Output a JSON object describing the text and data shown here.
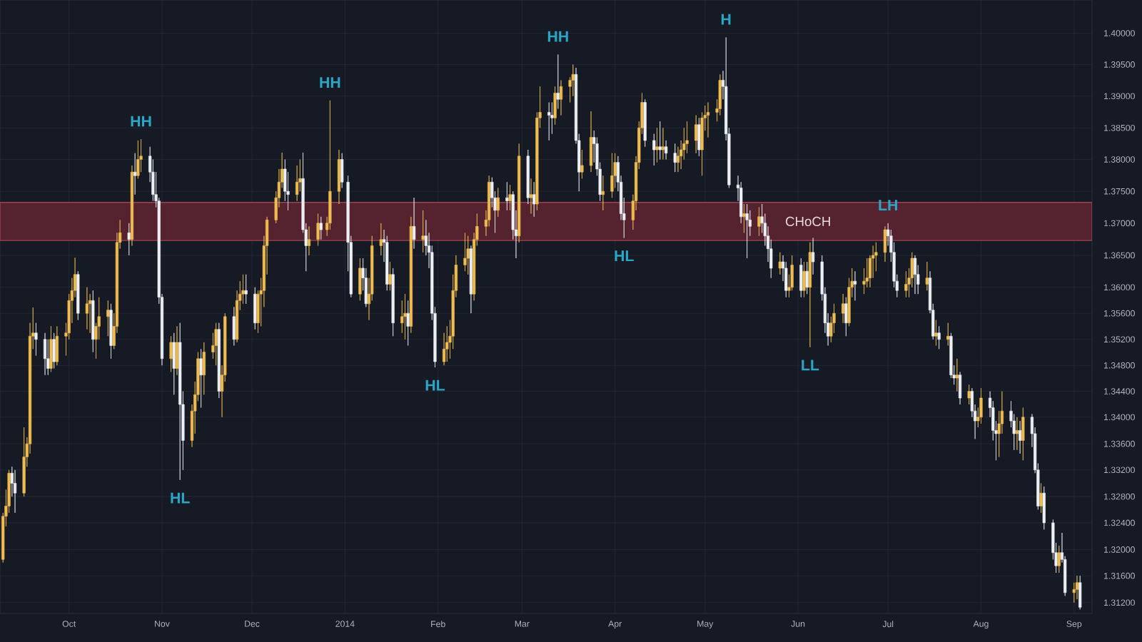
{
  "chart_data": {
    "type": "candlestick",
    "x": [
      "2013-09-09",
      "2013-09-10",
      "2013-09-11",
      "2013-09-12",
      "2013-09-13",
      "2013-09-16",
      "2013-09-17",
      "2013-09-18",
      "2013-09-19",
      "2013-09-20",
      "2013-09-23",
      "2013-09-24",
      "2013-09-25",
      "2013-09-26",
      "2013-09-27",
      "2013-09-30",
      "2013-10-01",
      "2013-10-02",
      "2013-10-03",
      "2013-10-04",
      "2013-10-07",
      "2013-10-08",
      "2013-10-09",
      "2013-10-10",
      "2013-10-11",
      "2013-10-14",
      "2013-10-15",
      "2013-10-16",
      "2013-10-17",
      "2013-10-18",
      "2013-10-21",
      "2013-10-22",
      "2013-10-23",
      "2013-10-24",
      "2013-10-25",
      "2013-10-28",
      "2013-10-29",
      "2013-10-30",
      "2013-10-31",
      "2013-11-01",
      "2013-11-04",
      "2013-11-05",
      "2013-11-06",
      "2013-11-07",
      "2013-11-08",
      "2013-11-11",
      "2013-11-12",
      "2013-11-13",
      "2013-11-14",
      "2013-11-15",
      "2013-11-18",
      "2013-11-19",
      "2013-11-20",
      "2013-11-21",
      "2013-11-22",
      "2013-11-25",
      "2013-11-26",
      "2013-11-27",
      "2013-11-28",
      "2013-11-29",
      "2013-12-02",
      "2013-12-03",
      "2013-12-04",
      "2013-12-05",
      "2013-12-06",
      "2013-12-09",
      "2013-12-10",
      "2013-12-11",
      "2013-12-12",
      "2013-12-13",
      "2013-12-16",
      "2013-12-17",
      "2013-12-18",
      "2013-12-19",
      "2013-12-20",
      "2013-12-23",
      "2013-12-24",
      "2013-12-26",
      "2013-12-27",
      "2013-12-30",
      "2013-12-31",
      "2014-01-02",
      "2014-01-03",
      "2014-01-06",
      "2014-01-07",
      "2014-01-08",
      "2014-01-09",
      "2014-01-10",
      "2014-01-13",
      "2014-01-14",
      "2014-01-15",
      "2014-01-16",
      "2014-01-17",
      "2014-01-20",
      "2014-01-21",
      "2014-01-22",
      "2014-01-23",
      "2014-01-24",
      "2014-01-27",
      "2014-01-28",
      "2014-01-29",
      "2014-01-30",
      "2014-01-31",
      "2014-02-03",
      "2014-02-04",
      "2014-02-05",
      "2014-02-06",
      "2014-02-07",
      "2014-02-10",
      "2014-02-11",
      "2014-02-12",
      "2014-02-13",
      "2014-02-14",
      "2014-02-17",
      "2014-02-18",
      "2014-02-19",
      "2014-02-20",
      "2014-02-21",
      "2014-02-24",
      "2014-02-25",
      "2014-02-26",
      "2014-02-27",
      "2014-02-28",
      "2014-03-03",
      "2014-03-04",
      "2014-03-05",
      "2014-03-06",
      "2014-03-07",
      "2014-03-10",
      "2014-03-11",
      "2014-03-12",
      "2014-03-13",
      "2014-03-14",
      "2014-03-17",
      "2014-03-18",
      "2014-03-19",
      "2014-03-20",
      "2014-03-21",
      "2014-03-24",
      "2014-03-25",
      "2014-03-26",
      "2014-03-27",
      "2014-03-28",
      "2014-03-31",
      "2014-04-01",
      "2014-04-02",
      "2014-04-03",
      "2014-04-04",
      "2014-04-07",
      "2014-04-08",
      "2014-04-09",
      "2014-04-10",
      "2014-04-11",
      "2014-04-14",
      "2014-04-15",
      "2014-04-16",
      "2014-04-17",
      "2014-04-18",
      "2014-04-21",
      "2014-04-22",
      "2014-04-23",
      "2014-04-24",
      "2014-04-25",
      "2014-04-28",
      "2014-04-29",
      "2014-04-30",
      "2014-05-01",
      "2014-05-02",
      "2014-05-05",
      "2014-05-06",
      "2014-05-07",
      "2014-05-08",
      "2014-05-09",
      "2014-05-12",
      "2014-05-13",
      "2014-05-14",
      "2014-05-15",
      "2014-05-16",
      "2014-05-19",
      "2014-05-20",
      "2014-05-21",
      "2014-05-22",
      "2014-05-23",
      "2014-05-26",
      "2014-05-27",
      "2014-05-28",
      "2014-05-29",
      "2014-05-30",
      "2014-06-02",
      "2014-06-03",
      "2014-06-04",
      "2014-06-05",
      "2014-06-06",
      "2014-06-09",
      "2014-06-10",
      "2014-06-11",
      "2014-06-12",
      "2014-06-13",
      "2014-06-16",
      "2014-06-17",
      "2014-06-18",
      "2014-06-19",
      "2014-06-20",
      "2014-06-23",
      "2014-06-24",
      "2014-06-25",
      "2014-06-26",
      "2014-06-27",
      "2014-06-30",
      "2014-07-01",
      "2014-07-02",
      "2014-07-03",
      "2014-07-04",
      "2014-07-07",
      "2014-07-08",
      "2014-07-09",
      "2014-07-10",
      "2014-07-11",
      "2014-07-14",
      "2014-07-15",
      "2014-07-16",
      "2014-07-17",
      "2014-07-18",
      "2014-07-21",
      "2014-07-22",
      "2014-07-23",
      "2014-07-24",
      "2014-07-25",
      "2014-07-28",
      "2014-07-29",
      "2014-07-30",
      "2014-07-31",
      "2014-08-01",
      "2014-08-04",
      "2014-08-05",
      "2014-08-06",
      "2014-08-07",
      "2014-08-08",
      "2014-08-11",
      "2014-08-12",
      "2014-08-13",
      "2014-08-14",
      "2014-08-15",
      "2014-08-18",
      "2014-08-19",
      "2014-08-20",
      "2014-08-21",
      "2014-08-22",
      "2014-08-25",
      "2014-08-26",
      "2014-08-27",
      "2014-08-28",
      "2014-08-29",
      "2014-09-01",
      "2014-09-02",
      "2014-09-03"
    ],
    "ohlc": [
      [
        1.3185,
        1.3255,
        1.318,
        1.325
      ],
      [
        1.325,
        1.329,
        1.3235,
        1.3265
      ],
      [
        1.3265,
        1.332,
        1.3255,
        1.3315
      ],
      [
        1.3315,
        1.3325,
        1.328,
        1.33
      ],
      [
        1.33,
        1.332,
        1.3255,
        1.3285
      ],
      [
        1.3285,
        1.3385,
        1.328,
        1.334
      ],
      [
        1.334,
        1.337,
        1.3325,
        1.336
      ],
      [
        1.336,
        1.3545,
        1.3345,
        1.3525
      ],
      [
        1.3525,
        1.3569,
        1.3505,
        1.353
      ],
      [
        1.353,
        1.3545,
        1.3495,
        1.352
      ],
      [
        1.352,
        1.353,
        1.3465,
        1.349
      ],
      [
        1.349,
        1.352,
        1.3465,
        1.3475
      ],
      [
        1.3475,
        1.354,
        1.347,
        1.352
      ],
      [
        1.352,
        1.353,
        1.3475,
        1.3485
      ],
      [
        1.3485,
        1.354,
        1.348,
        1.3525
      ],
      [
        1.3525,
        1.3545,
        1.3495,
        1.353
      ],
      [
        1.353,
        1.359,
        1.352,
        1.358
      ],
      [
        1.358,
        1.3615,
        1.3545,
        1.3595
      ],
      [
        1.3595,
        1.3646,
        1.3585,
        1.362
      ],
      [
        1.362,
        1.3625,
        1.355,
        1.356
      ],
      [
        1.356,
        1.36,
        1.3535,
        1.3575
      ],
      [
        1.3575,
        1.359,
        1.353,
        1.358
      ],
      [
        1.358,
        1.3595,
        1.35,
        1.352
      ],
      [
        1.352,
        1.3545,
        1.349,
        1.354
      ],
      [
        1.354,
        1.3585,
        1.352,
        1.3555
      ],
      [
        1.3555,
        1.358,
        1.3525,
        1.3565
      ],
      [
        1.3565,
        1.3575,
        1.349,
        1.351
      ],
      [
        1.351,
        1.356,
        1.3505,
        1.354
      ],
      [
        1.354,
        1.3685,
        1.353,
        1.367
      ],
      [
        1.367,
        1.3705,
        1.366,
        1.3685
      ],
      [
        1.3685,
        1.37,
        1.365,
        1.3675
      ],
      [
        1.3675,
        1.379,
        1.3665,
        1.378
      ],
      [
        1.378,
        1.381,
        1.3745,
        1.3775
      ],
      [
        1.3775,
        1.383,
        1.377,
        1.38
      ],
      [
        1.38,
        1.3832,
        1.378,
        1.3805
      ],
      [
        1.3805,
        1.382,
        1.3765,
        1.378
      ],
      [
        1.378,
        1.38,
        1.3735,
        1.3745
      ],
      [
        1.3745,
        1.378,
        1.3725,
        1.3735
      ],
      [
        1.3735,
        1.374,
        1.3575,
        1.3585
      ],
      [
        1.3585,
        1.359,
        1.348,
        1.349
      ],
      [
        1.349,
        1.3525,
        1.347,
        1.3515
      ],
      [
        1.3515,
        1.353,
        1.3435,
        1.3475
      ],
      [
        1.3475,
        1.354,
        1.3465,
        1.3515
      ],
      [
        1.3515,
        1.3545,
        1.3305,
        1.342
      ],
      [
        1.342,
        1.344,
        1.332,
        1.3365
      ],
      [
        1.3365,
        1.342,
        1.3355,
        1.341
      ],
      [
        1.341,
        1.3455,
        1.3375,
        1.3435
      ],
      [
        1.3435,
        1.35,
        1.3425,
        1.349
      ],
      [
        1.349,
        1.3505,
        1.3415,
        1.3465
      ],
      [
        1.3465,
        1.3515,
        1.3435,
        1.35
      ],
      [
        1.35,
        1.353,
        1.349,
        1.351
      ],
      [
        1.351,
        1.3545,
        1.348,
        1.3535
      ],
      [
        1.3535,
        1.3545,
        1.343,
        1.344
      ],
      [
        1.344,
        1.348,
        1.34,
        1.3465
      ],
      [
        1.3465,
        1.356,
        1.3455,
        1.3555
      ],
      [
        1.3555,
        1.357,
        1.351,
        1.352
      ],
      [
        1.352,
        1.3595,
        1.3515,
        1.358
      ],
      [
        1.358,
        1.361,
        1.3565,
        1.359
      ],
      [
        1.359,
        1.362,
        1.3575,
        1.3595
      ],
      [
        1.3595,
        1.362,
        1.3575,
        1.359
      ],
      [
        1.359,
        1.36,
        1.3535,
        1.3545
      ],
      [
        1.3545,
        1.3595,
        1.353,
        1.359
      ],
      [
        1.359,
        1.3615,
        1.354,
        1.3595
      ],
      [
        1.3595,
        1.368,
        1.357,
        1.3665
      ],
      [
        1.3665,
        1.371,
        1.362,
        1.3705
      ],
      [
        1.3705,
        1.375,
        1.37,
        1.374
      ],
      [
        1.374,
        1.3785,
        1.3725,
        1.3765
      ],
      [
        1.3765,
        1.3811,
        1.3755,
        1.3785
      ],
      [
        1.3785,
        1.38,
        1.3735,
        1.375
      ],
      [
        1.375,
        1.378,
        1.372,
        1.3745
      ],
      [
        1.3745,
        1.379,
        1.3735,
        1.3765
      ],
      [
        1.3765,
        1.38,
        1.375,
        1.377
      ],
      [
        1.377,
        1.3811,
        1.3685,
        1.369
      ],
      [
        1.369,
        1.37,
        1.3625,
        1.3665
      ],
      [
        1.3665,
        1.3695,
        1.365,
        1.3675
      ],
      [
        1.3675,
        1.3715,
        1.3665,
        1.37
      ],
      [
        1.37,
        1.371,
        1.3675,
        1.369
      ],
      [
        1.369,
        1.371,
        1.368,
        1.37
      ],
      [
        1.37,
        1.3893,
        1.369,
        1.375
      ],
      [
        1.375,
        1.3815,
        1.373,
        1.38
      ],
      [
        1.38,
        1.381,
        1.3755,
        1.3765
      ],
      [
        1.3765,
        1.3775,
        1.3625,
        1.367
      ],
      [
        1.367,
        1.368,
        1.3585,
        1.359
      ],
      [
        1.359,
        1.3645,
        1.358,
        1.363
      ],
      [
        1.363,
        1.3645,
        1.3595,
        1.3615
      ],
      [
        1.3615,
        1.363,
        1.357,
        1.3575
      ],
      [
        1.3575,
        1.3615,
        1.355,
        1.359
      ],
      [
        1.359,
        1.368,
        1.358,
        1.3665
      ],
      [
        1.3665,
        1.37,
        1.365,
        1.3675
      ],
      [
        1.3675,
        1.369,
        1.364,
        1.367
      ],
      [
        1.367,
        1.368,
        1.3595,
        1.3605
      ],
      [
        1.3605,
        1.364,
        1.3595,
        1.362
      ],
      [
        1.362,
        1.363,
        1.3525,
        1.3545
      ],
      [
        1.3545,
        1.358,
        1.353,
        1.3555
      ],
      [
        1.3555,
        1.359,
        1.352,
        1.356
      ],
      [
        1.356,
        1.358,
        1.351,
        1.354
      ],
      [
        1.354,
        1.371,
        1.353,
        1.3695
      ],
      [
        1.3695,
        1.374,
        1.366,
        1.3675
      ],
      [
        1.3675,
        1.372,
        1.3655,
        1.368
      ],
      [
        1.368,
        1.3705,
        1.365,
        1.3665
      ],
      [
        1.3665,
        1.3685,
        1.363,
        1.3655
      ],
      [
        1.3655,
        1.3665,
        1.355,
        1.356
      ],
      [
        1.356,
        1.357,
        1.3477,
        1.3485
      ],
      [
        1.3485,
        1.353,
        1.348,
        1.3505
      ],
      [
        1.3505,
        1.354,
        1.3485,
        1.3515
      ],
      [
        1.3515,
        1.355,
        1.349,
        1.3525
      ],
      [
        1.3525,
        1.362,
        1.3505,
        1.3595
      ],
      [
        1.3595,
        1.365,
        1.3585,
        1.3635
      ],
      [
        1.3635,
        1.3685,
        1.3625,
        1.3645
      ],
      [
        1.3645,
        1.368,
        1.362,
        1.366
      ],
      [
        1.366,
        1.3665,
        1.356,
        1.359
      ],
      [
        1.359,
        1.3685,
        1.358,
        1.3675
      ],
      [
        1.3675,
        1.3715,
        1.3665,
        1.3695
      ],
      [
        1.3695,
        1.372,
        1.368,
        1.3705
      ],
      [
        1.3705,
        1.3775,
        1.3695,
        1.3765
      ],
      [
        1.3765,
        1.3772,
        1.3725,
        1.374
      ],
      [
        1.374,
        1.375,
        1.3685,
        1.372
      ],
      [
        1.372,
        1.3755,
        1.371,
        1.374
      ],
      [
        1.374,
        1.3765,
        1.372,
        1.3735
      ],
      [
        1.3735,
        1.376,
        1.372,
        1.3745
      ],
      [
        1.3745,
        1.375,
        1.3675,
        1.369
      ],
      [
        1.369,
        1.372,
        1.3645,
        1.368
      ],
      [
        1.368,
        1.3825,
        1.367,
        1.3805
      ],
      [
        1.3805,
        1.3815,
        1.373,
        1.374
      ],
      [
        1.374,
        1.377,
        1.3715,
        1.3745
      ],
      [
        1.3745,
        1.3765,
        1.371,
        1.373
      ],
      [
        1.373,
        1.3875,
        1.372,
        1.3865
      ],
      [
        1.3865,
        1.3915,
        1.385,
        1.3875
      ],
      [
        1.3875,
        1.389,
        1.383,
        1.387
      ],
      [
        1.387,
        1.389,
        1.384,
        1.3865
      ],
      [
        1.3865,
        1.3915,
        1.3855,
        1.3905
      ],
      [
        1.3905,
        1.3966,
        1.388,
        1.3895
      ],
      [
        1.3895,
        1.3925,
        1.387,
        1.3915
      ],
      [
        1.3915,
        1.393,
        1.389,
        1.3925
      ],
      [
        1.3925,
        1.395,
        1.39,
        1.3935
      ],
      [
        1.3935,
        1.3945,
        1.3825,
        1.383
      ],
      [
        1.383,
        1.384,
        1.375,
        1.378
      ],
      [
        1.378,
        1.3815,
        1.377,
        1.379
      ],
      [
        1.379,
        1.3876,
        1.378,
        1.3835
      ],
      [
        1.3835,
        1.3845,
        1.3795,
        1.3825
      ],
      [
        1.3825,
        1.3835,
        1.3775,
        1.3785
      ],
      [
        1.3785,
        1.3795,
        1.3735,
        1.3745
      ],
      [
        1.3745,
        1.3775,
        1.372,
        1.375
      ],
      [
        1.375,
        1.381,
        1.374,
        1.3775
      ],
      [
        1.3775,
        1.381,
        1.3755,
        1.3795
      ],
      [
        1.3795,
        1.3805,
        1.375,
        1.3765
      ],
      [
        1.3765,
        1.3775,
        1.3705,
        1.3715
      ],
      [
        1.3715,
        1.374,
        1.3677,
        1.3705
      ],
      [
        1.3705,
        1.3745,
        1.369,
        1.3735
      ],
      [
        1.3735,
        1.3805,
        1.372,
        1.3795
      ],
      [
        1.3795,
        1.386,
        1.3785,
        1.385
      ],
      [
        1.385,
        1.3905,
        1.384,
        1.389
      ],
      [
        1.389,
        1.3895,
        1.382,
        1.383
      ],
      [
        1.383,
        1.384,
        1.379,
        1.3815
      ],
      [
        1.3815,
        1.385,
        1.3795,
        1.382
      ],
      [
        1.382,
        1.386,
        1.38,
        1.3815
      ],
      [
        1.3815,
        1.385,
        1.38,
        1.382
      ],
      [
        1.382,
        1.383,
        1.38,
        1.381
      ],
      [
        1.381,
        1.3825,
        1.378,
        1.3795
      ],
      [
        1.3795,
        1.382,
        1.378,
        1.3805
      ],
      [
        1.3805,
        1.383,
        1.3785,
        1.3815
      ],
      [
        1.3815,
        1.385,
        1.38,
        1.3825
      ],
      [
        1.3825,
        1.386,
        1.381,
        1.383
      ],
      [
        1.383,
        1.387,
        1.381,
        1.3855
      ],
      [
        1.3855,
        1.3865,
        1.3805,
        1.3815
      ],
      [
        1.3815,
        1.3875,
        1.3775,
        1.3865
      ],
      [
        1.3865,
        1.3885,
        1.3845,
        1.387
      ],
      [
        1.387,
        1.389,
        1.3835,
        1.3875
      ],
      [
        1.3875,
        1.3895,
        1.386,
        1.388
      ],
      [
        1.388,
        1.3935,
        1.387,
        1.3925
      ],
      [
        1.3925,
        1.394,
        1.3895,
        1.3915
      ],
      [
        1.3915,
        1.3993,
        1.383,
        1.384
      ],
      [
        1.384,
        1.385,
        1.3755,
        1.376
      ],
      [
        1.376,
        1.3775,
        1.3735,
        1.3755
      ],
      [
        1.3755,
        1.3765,
        1.37,
        1.371
      ],
      [
        1.371,
        1.373,
        1.3685,
        1.3715
      ],
      [
        1.3715,
        1.373,
        1.3645,
        1.3705
      ],
      [
        1.3705,
        1.372,
        1.368,
        1.3695
      ],
      [
        1.3695,
        1.3725,
        1.368,
        1.371
      ],
      [
        1.371,
        1.373,
        1.3685,
        1.37
      ],
      [
        1.37,
        1.3715,
        1.3665,
        1.368
      ],
      [
        1.368,
        1.3695,
        1.364,
        1.366
      ],
      [
        1.366,
        1.3675,
        1.3615,
        1.363
      ],
      [
        1.363,
        1.3655,
        1.362,
        1.364
      ],
      [
        1.364,
        1.365,
        1.361,
        1.363
      ],
      [
        1.363,
        1.364,
        1.3585,
        1.3595
      ],
      [
        1.3595,
        1.362,
        1.3585,
        1.36
      ],
      [
        1.36,
        1.365,
        1.3595,
        1.3635
      ],
      [
        1.3635,
        1.3645,
        1.3585,
        1.3595
      ],
      [
        1.3595,
        1.364,
        1.3585,
        1.3625
      ],
      [
        1.3625,
        1.364,
        1.359,
        1.36
      ],
      [
        1.36,
        1.367,
        1.3508,
        1.3655
      ],
      [
        1.3655,
        1.3677,
        1.362,
        1.364
      ],
      [
        1.364,
        1.365,
        1.358,
        1.359
      ],
      [
        1.359,
        1.36,
        1.353,
        1.3545
      ],
      [
        1.3545,
        1.356,
        1.351,
        1.3525
      ],
      [
        1.3525,
        1.3555,
        1.3515,
        1.3545
      ],
      [
        1.3545,
        1.3575,
        1.353,
        1.356
      ],
      [
        1.356,
        1.359,
        1.3545,
        1.3575
      ],
      [
        1.3575,
        1.3585,
        1.3525,
        1.3545
      ],
      [
        1.3545,
        1.3615,
        1.354,
        1.36
      ],
      [
        1.36,
        1.363,
        1.3585,
        1.361
      ],
      [
        1.361,
        1.3625,
        1.358,
        1.3605
      ],
      [
        1.3605,
        1.363,
        1.359,
        1.361
      ],
      [
        1.361,
        1.3645,
        1.36,
        1.3615
      ],
      [
        1.3615,
        1.365,
        1.36,
        1.3645
      ],
      [
        1.3645,
        1.3665,
        1.3615,
        1.365
      ],
      [
        1.365,
        1.367,
        1.3625,
        1.3655
      ],
      [
        1.3655,
        1.3695,
        1.364,
        1.369
      ],
      [
        1.369,
        1.37,
        1.3665,
        1.368
      ],
      [
        1.368,
        1.369,
        1.364,
        1.3655
      ],
      [
        1.3655,
        1.367,
        1.36,
        1.361
      ],
      [
        1.361,
        1.362,
        1.3585,
        1.3595
      ],
      [
        1.3595,
        1.3625,
        1.3585,
        1.3605
      ],
      [
        1.3605,
        1.363,
        1.3585,
        1.3615
      ],
      [
        1.3615,
        1.3655,
        1.36,
        1.3645
      ],
      [
        1.3645,
        1.365,
        1.359,
        1.362
      ],
      [
        1.362,
        1.3635,
        1.359,
        1.3605
      ],
      [
        1.3605,
        1.364,
        1.3595,
        1.3615
      ],
      [
        1.3615,
        1.3625,
        1.356,
        1.3565
      ],
      [
        1.3565,
        1.3575,
        1.352,
        1.3525
      ],
      [
        1.3525,
        1.355,
        1.351,
        1.353
      ],
      [
        1.353,
        1.354,
        1.3505,
        1.352
      ],
      [
        1.352,
        1.3545,
        1.351,
        1.3525
      ],
      [
        1.3525,
        1.353,
        1.346,
        1.3465
      ],
      [
        1.3465,
        1.348,
        1.345,
        1.346
      ],
      [
        1.346,
        1.349,
        1.344,
        1.3465
      ],
      [
        1.3465,
        1.347,
        1.342,
        1.343
      ],
      [
        1.343,
        1.345,
        1.342,
        1.344
      ],
      [
        1.344,
        1.3445,
        1.34,
        1.341
      ],
      [
        1.341,
        1.342,
        1.3367,
        1.3395
      ],
      [
        1.3395,
        1.3415,
        1.3385,
        1.34
      ],
      [
        1.34,
        1.3445,
        1.339,
        1.343
      ],
      [
        1.343,
        1.344,
        1.34,
        1.3415
      ],
      [
        1.3415,
        1.3425,
        1.3365,
        1.338
      ],
      [
        1.338,
        1.3395,
        1.3335,
        1.3375
      ],
      [
        1.3375,
        1.341,
        1.334,
        1.339
      ],
      [
        1.339,
        1.344,
        1.3375,
        1.341
      ],
      [
        1.341,
        1.3425,
        1.3385,
        1.3395
      ],
      [
        1.3395,
        1.3405,
        1.335,
        1.3375
      ],
      [
        1.3375,
        1.34,
        1.335,
        1.338
      ],
      [
        1.338,
        1.3395,
        1.3345,
        1.3365
      ],
      [
        1.3365,
        1.3415,
        1.3335,
        1.34
      ],
      [
        1.34,
        1.3405,
        1.3355,
        1.3375
      ],
      [
        1.3375,
        1.3385,
        1.3315,
        1.332
      ],
      [
        1.332,
        1.333,
        1.326,
        1.3265
      ],
      [
        1.3265,
        1.33,
        1.3255,
        1.3285
      ],
      [
        1.3285,
        1.3295,
        1.323,
        1.324
      ],
      [
        1.324,
        1.3245,
        1.3185,
        1.3195
      ],
      [
        1.3195,
        1.321,
        1.3165,
        1.3175
      ],
      [
        1.3175,
        1.3205,
        1.3165,
        1.3195
      ],
      [
        1.3195,
        1.3225,
        1.318,
        1.3185
      ],
      [
        1.3185,
        1.319,
        1.313,
        1.3135
      ],
      [
        1.3135,
        1.315,
        1.312,
        1.314
      ],
      [
        1.314,
        1.316,
        1.3125,
        1.315
      ],
      [
        1.315,
        1.316,
        1.311,
        1.3113
      ]
    ],
    "colors": [
      "#efbd4f",
      "#efbd4f",
      "#efbd4f",
      "#eceff4",
      "#eceff4",
      "#efbd4f",
      "#efbd4f",
      "#efbd4f",
      "#efbd4f",
      "#eceff4",
      "#eceff4",
      "#eceff4",
      "#efbd4f",
      "#eceff4",
      "#efbd4f",
      "#efbd4f",
      "#efbd4f",
      "#efbd4f",
      "#efbd4f",
      "#eceff4",
      "#efbd4f",
      "#efbd4f",
      "#eceff4",
      "#efbd4f",
      "#efbd4f",
      "#efbd4f",
      "#eceff4",
      "#efbd4f",
      "#efbd4f",
      "#efbd4f",
      "#eceff4",
      "#efbd4f",
      "#eceff4",
      "#efbd4f",
      "#efbd4f",
      "#eceff4",
      "#eceff4",
      "#eceff4",
      "#eceff4",
      "#eceff4",
      "#efbd4f",
      "#eceff4",
      "#efbd4f",
      "#eceff4",
      "#eceff4",
      "#efbd4f",
      "#efbd4f",
      "#efbd4f",
      "#eceff4",
      "#efbd4f",
      "#efbd4f",
      "#efbd4f",
      "#eceff4",
      "#efbd4f",
      "#efbd4f",
      "#eceff4",
      "#efbd4f",
      "#efbd4f",
      "#efbd4f",
      "#eceff4",
      "#eceff4",
      "#efbd4f",
      "#efbd4f",
      "#efbd4f",
      "#efbd4f",
      "#efbd4f",
      "#efbd4f",
      "#efbd4f",
      "#eceff4",
      "#eceff4",
      "#efbd4f",
      "#efbd4f",
      "#eceff4",
      "#eceff4",
      "#efbd4f",
      "#efbd4f",
      "#eceff4",
      "#efbd4f",
      "#efbd4f",
      "#efbd4f",
      "#eceff4",
      "#eceff4",
      "#eceff4",
      "#efbd4f",
      "#eceff4",
      "#eceff4",
      "#efbd4f",
      "#efbd4f",
      "#efbd4f",
      "#eceff4",
      "#eceff4",
      "#efbd4f",
      "#eceff4",
      "#efbd4f",
      "#efbd4f",
      "#eceff4",
      "#efbd4f",
      "#eceff4",
      "#efbd4f",
      "#eceff4",
      "#eceff4",
      "#eceff4",
      "#eceff4",
      "#efbd4f",
      "#efbd4f",
      "#efbd4f",
      "#efbd4f",
      "#efbd4f",
      "#efbd4f",
      "#efbd4f",
      "#eceff4",
      "#efbd4f",
      "#efbd4f",
      "#efbd4f",
      "#efbd4f",
      "#eceff4",
      "#eceff4",
      "#efbd4f",
      "#eceff4",
      "#efbd4f",
      "#eceff4",
      "#eceff4",
      "#efbd4f",
      "#eceff4",
      "#efbd4f",
      "#eceff4",
      "#efbd4f",
      "#efbd4f",
      "#eceff4",
      "#eceff4",
      "#efbd4f",
      "#eceff4",
      "#efbd4f",
      "#efbd4f",
      "#efbd4f",
      "#eceff4",
      "#eceff4",
      "#efbd4f",
      "#efbd4f",
      "#eceff4",
      "#eceff4",
      "#eceff4",
      "#efbd4f",
      "#efbd4f",
      "#efbd4f",
      "#eceff4",
      "#eceff4",
      "#eceff4",
      "#efbd4f",
      "#efbd4f",
      "#efbd4f",
      "#efbd4f",
      "#eceff4",
      "#eceff4",
      "#efbd4f",
      "#eceff4",
      "#efbd4f",
      "#eceff4",
      "#eceff4",
      "#efbd4f",
      "#efbd4f",
      "#efbd4f",
      "#efbd4f",
      "#efbd4f",
      "#eceff4",
      "#efbd4f",
      "#efbd4f",
      "#efbd4f",
      "#efbd4f",
      "#efbd4f",
      "#eceff4",
      "#eceff4",
      "#eceff4",
      "#eceff4",
      "#eceff4",
      "#efbd4f",
      "#eceff4",
      "#eceff4",
      "#efbd4f",
      "#eceff4",
      "#eceff4",
      "#eceff4",
      "#eceff4",
      "#efbd4f",
      "#eceff4",
      "#eceff4",
      "#efbd4f",
      "#efbd4f",
      "#eceff4",
      "#efbd4f",
      "#eceff4",
      "#efbd4f",
      "#eceff4",
      "#eceff4",
      "#eceff4",
      "#eceff4",
      "#efbd4f",
      "#efbd4f",
      "#efbd4f",
      "#eceff4",
      "#efbd4f",
      "#efbd4f",
      "#eceff4",
      "#efbd4f",
      "#efbd4f",
      "#efbd4f",
      "#efbd4f",
      "#efbd4f",
      "#efbd4f",
      "#eceff4",
      "#eceff4",
      "#eceff4",
      "#eceff4",
      "#efbd4f",
      "#efbd4f",
      "#efbd4f",
      "#eceff4",
      "#eceff4",
      "#efbd4f",
      "#eceff4",
      "#eceff4",
      "#efbd4f",
      "#eceff4",
      "#efbd4f",
      "#eceff4",
      "#eceff4",
      "#efbd4f",
      "#eceff4",
      "#efbd4f",
      "#eceff4",
      "#eceff4",
      "#efbd4f",
      "#efbd4f",
      "#eceff4",
      "#eceff4",
      "#eceff4",
      "#efbd4f",
      "#efbd4f",
      "#eceff4",
      "#eceff4",
      "#efbd4f",
      "#eceff4",
      "#efbd4f",
      "#eceff4",
      "#eceff4",
      "#eceff4",
      "#efbd4f",
      "#eceff4",
      "#eceff4",
      "#eceff4",
      "#efbd4f",
      "#eceff4",
      "#eceff4",
      "#efbd4f",
      "#efbd4f",
      "#eceff4"
    ],
    "xlim": [
      "2013-09-08",
      "2014-09-07"
    ],
    "xticks": [
      {
        "value": "2013-10-01",
        "label": "Oct"
      },
      {
        "value": "2013-11-01",
        "label": "Nov"
      },
      {
        "value": "2013-12-01",
        "label": "Dec"
      },
      {
        "value": "2014-01-01",
        "label": "2014"
      },
      {
        "value": "2014-02-01",
        "label": "Feb"
      },
      {
        "value": "2014-03-01",
        "label": "Mar"
      },
      {
        "value": "2014-04-01",
        "label": "Apr"
      },
      {
        "value": "2014-05-01",
        "label": "May"
      },
      {
        "value": "2014-06-01",
        "label": "Jun"
      },
      {
        "value": "2014-07-01",
        "label": "Jul"
      },
      {
        "value": "2014-08-01",
        "label": "Aug"
      },
      {
        "value": "2014-09-01",
        "label": "Sep"
      }
    ],
    "ylim": [
      1.3104,
      1.4053
    ],
    "yticks": [
      {
        "value": 1.312,
        "label": "1.31200"
      },
      {
        "value": 1.316,
        "label": "1.31600"
      },
      {
        "value": 1.32,
        "label": "1.32000"
      },
      {
        "value": 1.324,
        "label": "1.32400"
      },
      {
        "value": 1.328,
        "label": "1.32800"
      },
      {
        "value": 1.332,
        "label": "1.33200"
      },
      {
        "value": 1.336,
        "label": "1.33600"
      },
      {
        "value": 1.34,
        "label": "1.34000"
      },
      {
        "value": 1.344,
        "label": "1.34400"
      },
      {
        "value": 1.348,
        "label": "1.34800"
      },
      {
        "value": 1.352,
        "label": "1.35200"
      },
      {
        "value": 1.356,
        "label": "1.35600"
      },
      {
        "value": 1.36,
        "label": "1.36000"
      },
      {
        "value": 1.365,
        "label": "1.36500"
      },
      {
        "value": 1.37,
        "label": "1.37000"
      },
      {
        "value": 1.375,
        "label": "1.37500"
      },
      {
        "value": 1.38,
        "label": "1.38000"
      },
      {
        "value": 1.385,
        "label": "1.38500"
      },
      {
        "value": 1.39,
        "label": "1.39000"
      },
      {
        "value": 1.395,
        "label": "1.39500"
      },
      {
        "value": 1.4,
        "label": "1.40000"
      }
    ],
    "log": true,
    "grid": true,
    "annotations": [
      {
        "text": "HH",
        "x": "2013-10-25",
        "y": 1.3832
      },
      {
        "text": "HL",
        "x": "2013-11-07",
        "y": 1.3305
      },
      {
        "text": "HH",
        "x": "2013-12-27",
        "y": 1.3893
      },
      {
        "text": "HL",
        "x": "2014-01-31",
        "y": 1.3477
      },
      {
        "text": "HH",
        "x": "2014-03-13",
        "y": 1.3966
      },
      {
        "text": "HL",
        "x": "2014-04-04",
        "y": 1.3677
      },
      {
        "text": "H",
        "x": "2014-05-08",
        "y": 1.3993
      },
      {
        "text": "LL",
        "x": "2014-06-05",
        "y": 1.3508
      },
      {
        "text": "LH",
        "x": "2014-07-01",
        "y": 1.37
      }
    ],
    "bands": [
      {
        "axis": "y",
        "from": 1.3673,
        "to": 1.3733,
        "label": "CHoCH",
        "color": "#55232f"
      }
    ]
  }
}
